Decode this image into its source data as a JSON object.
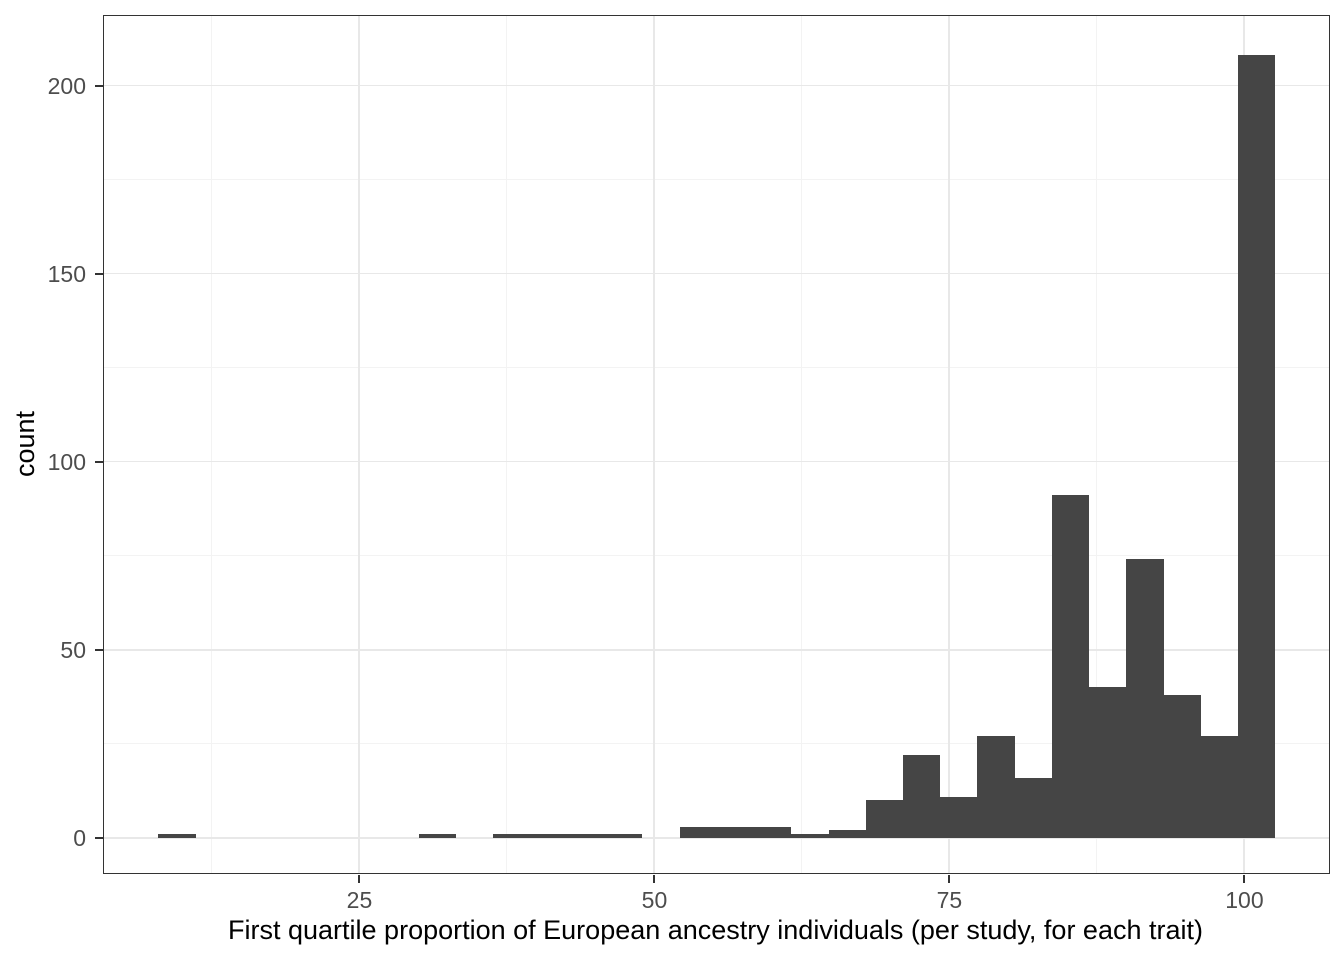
{
  "chart_data": {
    "type": "bar",
    "subtype": "histogram",
    "title": "",
    "xlabel": "First quartile proportion of European ancestry individuals (per study, for each trait)",
    "ylabel": "count",
    "xlim": [
      3.39,
      107.21
    ],
    "ylim": [
      -9.3,
      218.4
    ],
    "x_major_ticks": [
      25,
      50,
      75,
      100
    ],
    "x_minor_gridlines": [
      12.5,
      37.5,
      62.5,
      87.5
    ],
    "y_major_ticks": [
      0,
      50,
      100,
      150,
      200
    ],
    "y_minor_gridlines": [
      25,
      75,
      125,
      175
    ],
    "bin_start": 8.0,
    "bin_width": 3.1552,
    "counts": [
      1,
      0,
      0,
      0,
      0,
      0,
      0,
      1,
      0,
      1,
      1,
      1,
      1,
      0,
      3,
      3,
      3,
      1,
      2,
      10,
      22,
      11,
      27,
      16,
      91,
      40,
      74,
      38,
      27,
      208
    ],
    "grid": "on",
    "legend": "none",
    "colors": {
      "bar_fill": "#454545",
      "panel_border": "#333333",
      "grid_major": "#e8e8e8",
      "grid_minor": "#f3f3f3",
      "tick_mark": "#333333",
      "tick_label": "#4d4d4d",
      "axis_title": "#000000",
      "background": "#ffffff"
    }
  }
}
